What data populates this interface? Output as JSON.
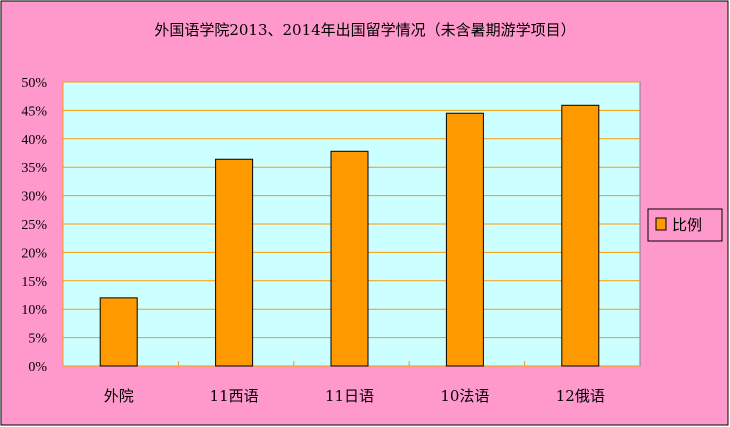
{
  "chart_data": {
    "type": "bar",
    "title": "外国语学院2013、2014年出国留学情况（未含暑期游学项目）",
    "categories": [
      "外院",
      "11西语",
      "11日语",
      "10法语",
      "12俄语"
    ],
    "series": [
      {
        "name": "比例",
        "values": [
          12,
          36.4,
          37.8,
          44.5,
          45.9
        ]
      }
    ],
    "ylim": [
      0,
      50
    ],
    "yticks": [
      "0%",
      "5%",
      "10%",
      "15%",
      "20%",
      "25%",
      "30%",
      "35%",
      "40%",
      "45%",
      "50%"
    ],
    "grid": true,
    "legend": "right",
    "colors": {
      "background": "#FF99CC",
      "plot": "#CCFFFF",
      "bar": "#FF9900",
      "grid": "#FF9900"
    }
  }
}
